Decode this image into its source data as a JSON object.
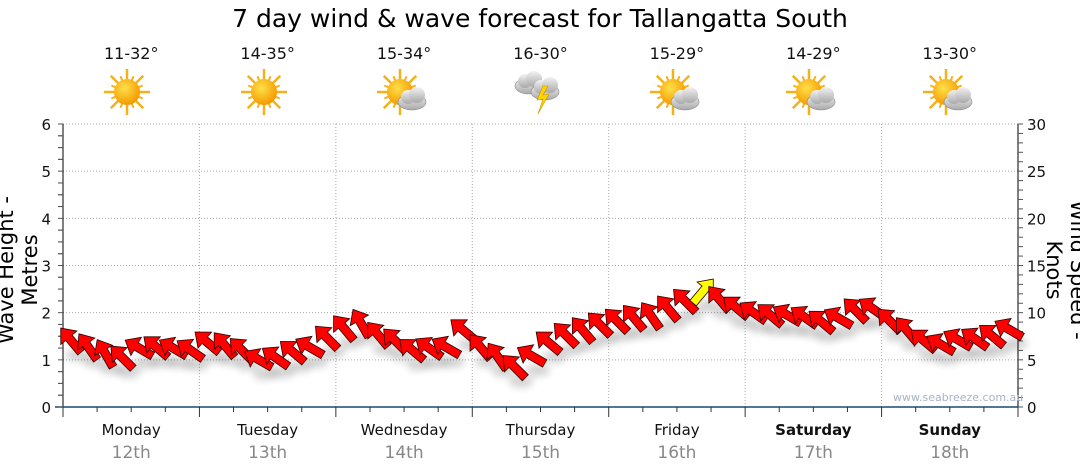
{
  "title": "7 day wind & wave forecast for Tallangatta South",
  "credit": "www.seabreeze.com.au",
  "days": [
    {
      "name": "Monday",
      "date": "12th",
      "temp": "11-32°",
      "icon": "sunny",
      "weekend": false
    },
    {
      "name": "Tuesday",
      "date": "13th",
      "temp": "14-35°",
      "icon": "sunny",
      "weekend": false
    },
    {
      "name": "Wednesday",
      "date": "14th",
      "temp": "15-34°",
      "icon": "partly-cloudy",
      "weekend": false
    },
    {
      "name": "Thursday",
      "date": "15th",
      "temp": "16-30°",
      "icon": "thunderstorm",
      "weekend": false
    },
    {
      "name": "Friday",
      "date": "16th",
      "temp": "15-29°",
      "icon": "partly-cloudy",
      "weekend": false
    },
    {
      "name": "Saturday",
      "date": "17th",
      "temp": "14-29°",
      "icon": "partly-cloudy",
      "weekend": true
    },
    {
      "name": "Sunday",
      "date": "18th",
      "temp": "13-30°",
      "icon": "partly-cloudy",
      "weekend": true
    }
  ],
  "colors": {
    "arrow": "#ff0000",
    "arrow_strong": "#ffff00",
    "axis": "#1a4a6e",
    "grid": "#aaaaaa"
  },
  "chart_data": {
    "type": "scatter",
    "title": "7 day wind & wave forecast for Tallangatta South",
    "ylabel": "Wave Height - Metres",
    "y2label": "Wind Speed - Knots",
    "ylim": [
      0,
      6
    ],
    "y2lim": [
      0,
      30
    ],
    "yticks": [
      "0",
      "1",
      "2",
      "3",
      "4",
      "5",
      "6"
    ],
    "y2ticks": [
      "0",
      "5",
      "10",
      "15",
      "20",
      "25",
      "30"
    ],
    "grid": true,
    "interval_hours": 3,
    "wind_speed_knots": [
      7.0,
      6.3,
      5.6,
      5.2,
      6.2,
      6.3,
      6.2,
      6.0,
      6.8,
      6.5,
      6.0,
      5.0,
      5.2,
      5.8,
      6.3,
      7.3,
      8.3,
      8.8,
      7.6,
      7.0,
      6.0,
      6.2,
      6.3,
      8.1,
      6.3,
      5.3,
      4.2,
      5.4,
      6.8,
      7.6,
      8.1,
      8.7,
      9.1,
      9.4,
      9.6,
      10.4,
      11.2,
      12.2,
      11.4,
      10.5,
      10.0,
      9.7,
      9.7,
      9.5,
      9.0,
      9.4,
      10.2,
      10.4,
      9.1,
      8.1,
      7.0,
      6.6,
      7.1,
      7.2,
      7.5,
      8.2
    ],
    "wind_direction_to_deg": [
      320,
      325,
      330,
      315,
      300,
      310,
      300,
      305,
      310,
      320,
      315,
      300,
      305,
      310,
      300,
      315,
      320,
      330,
      320,
      315,
      310,
      305,
      300,
      310,
      320,
      325,
      315,
      300,
      310,
      315,
      320,
      315,
      315,
      320,
      325,
      320,
      315,
      40,
      320,
      310,
      305,
      310,
      300,
      305,
      310,
      300,
      315,
      305,
      315,
      320,
      310,
      300,
      300,
      305,
      310,
      300
    ]
  }
}
